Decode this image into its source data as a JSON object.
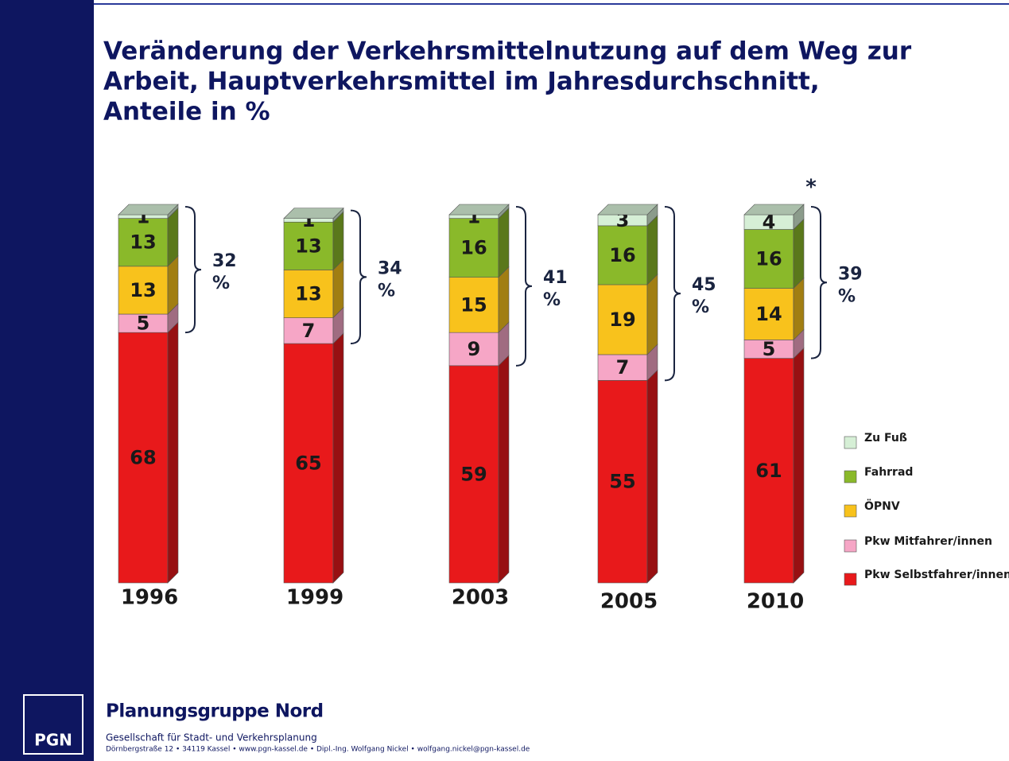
{
  "chart_data": {
    "type": "stacked_bar_3d",
    "title": [
      "Veränderung der Verkehrsmittelnutzung auf dem Weg zur",
      "Arbeit, Hauptverkehrsmittel im Jahresdurchschnitt,",
      "Anteile in %"
    ],
    "categories": [
      "1996",
      "1999",
      "2003",
      "2005",
      "2010"
    ],
    "series": [
      {
        "name": "Pkw Selbstfahrer/innen",
        "color": "#e8191b",
        "values": [
          68,
          65,
          59,
          55,
          61
        ]
      },
      {
        "name": "Pkw Mitfahrer/innen",
        "color": "#f6a6c6",
        "values": [
          5,
          7,
          9,
          7,
          5
        ]
      },
      {
        "name": "ÖPNV",
        "color": "#f8c21c",
        "values": [
          13,
          13,
          15,
          19,
          14
        ]
      },
      {
        "name": "Fahrrad",
        "color": "#8ab92a",
        "values": [
          13,
          13,
          16,
          16,
          16
        ]
      },
      {
        "name": "Zu Fuß",
        "color": "#d6efd6",
        "values": [
          1,
          1,
          1,
          3,
          4
        ]
      }
    ],
    "brackets": [
      {
        "value": 32,
        "unit": "%"
      },
      {
        "value": 34,
        "unit": "%"
      },
      {
        "value": 41,
        "unit": "%"
      },
      {
        "value": 45,
        "unit": "%"
      },
      {
        "value": 39,
        "unit": "%"
      }
    ],
    "note": "*"
  },
  "footer": {
    "logo": "PGN",
    "company": "Planungsgruppe Nord",
    "subtitle": "Gesellschaft für Stadt- und Verkehrsplanung",
    "address": "Dörnbergstraße 12 • 34119 Kassel • www.pgn-kassel.de • Dipl.-Ing. Wolfgang Nickel • wolfgang.nickel@pgn-kassel.de"
  }
}
